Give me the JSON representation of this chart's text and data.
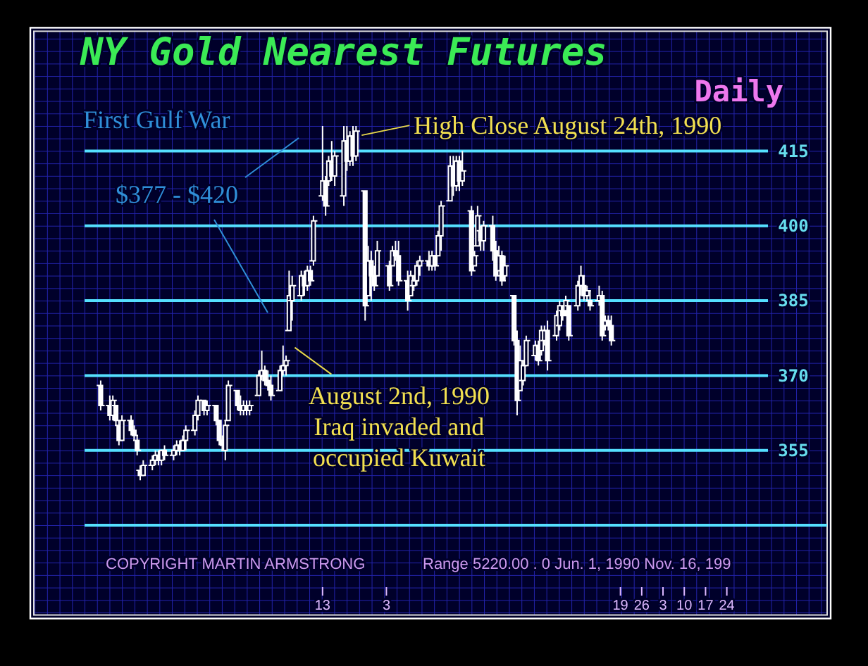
{
  "chart_data": {
    "type": "candlestick",
    "title": "NY Gold Nearest Futures",
    "subtitle": "Daily",
    "color": "#ffffff",
    "x": [
      "1990-06-01",
      "1990-06-04",
      "1990-06-05",
      "1990-06-06",
      "1990-06-07",
      "1990-06-08",
      "1990-06-11",
      "1990-06-12",
      "1990-06-13",
      "1990-06-14",
      "1990-06-15",
      "1990-06-18",
      "1990-06-19",
      "1990-06-20",
      "1990-06-21",
      "1990-06-22",
      "1990-06-25",
      "1990-06-26",
      "1990-06-27",
      "1990-06-28",
      "1990-06-29",
      "1990-07-02",
      "1990-07-03",
      "1990-07-05",
      "1990-07-06",
      "1990-07-09",
      "1990-07-10",
      "1990-07-11",
      "1990-07-12",
      "1990-07-13",
      "1990-07-16",
      "1990-07-17",
      "1990-07-18",
      "1990-07-19",
      "1990-07-20",
      "1990-07-23",
      "1990-07-24",
      "1990-07-25",
      "1990-07-26",
      "1990-07-27",
      "1990-07-30",
      "1990-07-31",
      "1990-08-01",
      "1990-08-02",
      "1990-08-03",
      "1990-08-06",
      "1990-08-07",
      "1990-08-08",
      "1990-08-09",
      "1990-08-10",
      "1990-08-13",
      "1990-08-14",
      "1990-08-15",
      "1990-08-16",
      "1990-08-17",
      "1990-08-20",
      "1990-08-21",
      "1990-08-22",
      "1990-08-23",
      "1990-08-24",
      "1990-08-27",
      "1990-08-28",
      "1990-08-29",
      "1990-08-30",
      "1990-08-31",
      "1990-09-04",
      "1990-09-05",
      "1990-09-06",
      "1990-09-07",
      "1990-09-10",
      "1990-09-11",
      "1990-09-12",
      "1990-09-13",
      "1990-09-14",
      "1990-09-17",
      "1990-09-18",
      "1990-09-19",
      "1990-09-20",
      "1990-09-21",
      "1990-09-24",
      "1990-09-25",
      "1990-09-26",
      "1990-09-27",
      "1990-09-28",
      "1990-10-01",
      "1990-10-02",
      "1990-10-03",
      "1990-10-04",
      "1990-10-05",
      "1990-10-08",
      "1990-10-09",
      "1990-10-10",
      "1990-10-11",
      "1990-10-12",
      "1990-10-15",
      "1990-10-16",
      "1990-10-17",
      "1990-10-18",
      "1990-10-19",
      "1990-10-22",
      "1990-10-23",
      "1990-10-24",
      "1990-10-25",
      "1990-10-26",
      "1990-10-29",
      "1990-10-30",
      "1990-10-31",
      "1990-11-01",
      "1990-11-02",
      "1990-11-05",
      "1990-11-06",
      "1990-11-07",
      "1990-11-08",
      "1990-11-09",
      "1990-11-12",
      "1990-11-13",
      "1990-11-14",
      "1990-11-15",
      "1990-11-16"
    ],
    "ohlc": [
      [
        368,
        369,
        363,
        364
      ],
      [
        364,
        366,
        361,
        362
      ],
      [
        362,
        366,
        361,
        365
      ],
      [
        364,
        364,
        360,
        361
      ],
      [
        360,
        361,
        356,
        357
      ],
      [
        357,
        362,
        357,
        361
      ],
      [
        361,
        362,
        358,
        359
      ],
      [
        359,
        360,
        357,
        358
      ],
      [
        357,
        358,
        354,
        355
      ],
      [
        351,
        352,
        349,
        350
      ],
      [
        350,
        353,
        350,
        352
      ],
      [
        352,
        354,
        351,
        353
      ],
      [
        353,
        355,
        352,
        354
      ],
      [
        354,
        355,
        352,
        353
      ],
      [
        353,
        355,
        352,
        355
      ],
      [
        355,
        356,
        353,
        354
      ],
      [
        354,
        356,
        353,
        355
      ],
      [
        355,
        357,
        354,
        356
      ],
      [
        356,
        357,
        354,
        355
      ],
      [
        355,
        358,
        355,
        357
      ],
      [
        357,
        360,
        355,
        359
      ],
      [
        359,
        363,
        358,
        362
      ],
      [
        362,
        366,
        361,
        365
      ],
      [
        365,
        365,
        362,
        363
      ],
      [
        363,
        365,
        362,
        364
      ],
      [
        364,
        364,
        360,
        361
      ],
      [
        361,
        361,
        356,
        357
      ],
      [
        357,
        358,
        355,
        356
      ],
      [
        355,
        361,
        353,
        360
      ],
      [
        361,
        369,
        361,
        368
      ],
      [
        367,
        367,
        363,
        364
      ],
      [
        364,
        366,
        362,
        363
      ],
      [
        363,
        365,
        362,
        364
      ],
      [
        364,
        365,
        362,
        363
      ],
      [
        363,
        365,
        362,
        364
      ],
      [
        366,
        371,
        366,
        370
      ],
      [
        370,
        375,
        369,
        371
      ],
      [
        371,
        372,
        368,
        369
      ],
      [
        369,
        371,
        367,
        368
      ],
      [
        368,
        370,
        365,
        366
      ],
      [
        367,
        372,
        367,
        371
      ],
      [
        371,
        376,
        370,
        372
      ],
      [
        372,
        374,
        370,
        373
      ],
      [
        379,
        391,
        379,
        386
      ],
      [
        385,
        390,
        381,
        388
      ],
      [
        386,
        391,
        385,
        390
      ],
      [
        390,
        391,
        386,
        388
      ],
      [
        388,
        392,
        387,
        391
      ],
      [
        391,
        392,
        388,
        389
      ],
      [
        393,
        402,
        392,
        401
      ],
      [
        406,
        420,
        405,
        409
      ],
      [
        409,
        410,
        402,
        404
      ],
      [
        409,
        414,
        408,
        413
      ],
      [
        413,
        417,
        409,
        410
      ],
      [
        410,
        415,
        408,
        414
      ],
      [
        406,
        420,
        404,
        417
      ],
      [
        417,
        420,
        411,
        413
      ],
      [
        413,
        419,
        412,
        418
      ],
      [
        418,
        420,
        412,
        414
      ],
      [
        414,
        420,
        413,
        419
      ],
      [
        407,
        407,
        381,
        384
      ],
      [
        386,
        396,
        386,
        393
      ],
      [
        393,
        395,
        385,
        390
      ],
      [
        390,
        392,
        387,
        388
      ],
      [
        390,
        397,
        390,
        395
      ],
      [
        392,
        393,
        387,
        388
      ],
      [
        392,
        396,
        392,
        395
      ],
      [
        395,
        397,
        393,
        394
      ],
      [
        394,
        397,
        388,
        389
      ],
      [
        389,
        391,
        383,
        385
      ],
      [
        386,
        391,
        386,
        390
      ],
      [
        388,
        390,
        387,
        389
      ],
      [
        389,
        393,
        388,
        392
      ],
      [
        392,
        394,
        390,
        393
      ],
      [
        393,
        395,
        391,
        392
      ],
      [
        392,
        395,
        391,
        394
      ],
      [
        394,
        394,
        391,
        392
      ],
      [
        394,
        399,
        394,
        398
      ],
      [
        398,
        405,
        395,
        404
      ],
      [
        405,
        414,
        405,
        412
      ],
      [
        412,
        414,
        406,
        408
      ],
      [
        408,
        414,
        407,
        413
      ],
      [
        413,
        414,
        407,
        409
      ],
      [
        409,
        415,
        408,
        411
      ],
      [
        403,
        404,
        390,
        391
      ],
      [
        392,
        395,
        392,
        394
      ],
      [
        396,
        404,
        396,
        402
      ],
      [
        399,
        400,
        395,
        397
      ],
      [
        397,
        401,
        395,
        400
      ],
      [
        400,
        402,
        393,
        395
      ],
      [
        395,
        397,
        389,
        390
      ],
      [
        391,
        396,
        391,
        394
      ],
      [
        394,
        395,
        388,
        389
      ],
      [
        390,
        394,
        389,
        392
      ],
      [
        386,
        386,
        376,
        377
      ],
      [
        377,
        379,
        362,
        365
      ],
      [
        367,
        376,
        367,
        373
      ],
      [
        369,
        373,
        368,
        372
      ],
      [
        372,
        378,
        372,
        377
      ],
      [
        374,
        377,
        373,
        376
      ],
      [
        376,
        377,
        372,
        373
      ],
      [
        375,
        380,
        374,
        379
      ],
      [
        377,
        380,
        376,
        379
      ],
      [
        379,
        381,
        371,
        373
      ],
      [
        378,
        383,
        377,
        382
      ],
      [
        380,
        385,
        379,
        384
      ],
      [
        383,
        384,
        381,
        382
      ],
      [
        383,
        386,
        382,
        385
      ],
      [
        384,
        384,
        377,
        378
      ],
      [
        384,
        389,
        383,
        388
      ],
      [
        388,
        392,
        386,
        390
      ],
      [
        388,
        390,
        385,
        386
      ],
      [
        386,
        388,
        385,
        387
      ],
      [
        385,
        387,
        383,
        384
      ],
      [
        385,
        388,
        384,
        386
      ],
      [
        386,
        387,
        377,
        378
      ],
      [
        380,
        382,
        379,
        381
      ],
      [
        381,
        382,
        379,
        380
      ],
      [
        380,
        382,
        376,
        377
      ]
    ],
    "xlim": [
      "1990-05-10",
      "1991-01-26"
    ],
    "xticks": [
      {
        "value": "1990-08-13",
        "label": "13"
      },
      {
        "value": "1990-09-03",
        "label": "3"
      },
      {
        "value": "1990-11-19",
        "label": "19"
      },
      {
        "value": "1990-11-26",
        "label": "26"
      },
      {
        "value": "1990-12-03",
        "label": "3"
      },
      {
        "value": "1990-12-10",
        "label": "10"
      },
      {
        "value": "1990-12-17",
        "label": "17"
      },
      {
        "value": "1990-12-24",
        "label": "24"
      }
    ],
    "ylim": [
      322,
      439
    ],
    "yticks": [
      {
        "value": 340,
        "label": null
      },
      355,
      370,
      385,
      400,
      415
    ],
    "grid": "y",
    "annotations": [
      "First Gulf War",
      "$377 - $420",
      {
        "text": "High Close August 24th, 1990",
        "x": "1990-08-24",
        "y": 419
      },
      {
        "text": "August 2nd, 1990\nIraq invaded and\noccupied Kuwait",
        "x": "1990-08-02",
        "y": 379
      },
      "COPYRIGHT MARTIN ARMSTRONG",
      "Range 5220.00 . 0 Jun. 1, 1990 Nov. 16, 199"
    ]
  }
}
